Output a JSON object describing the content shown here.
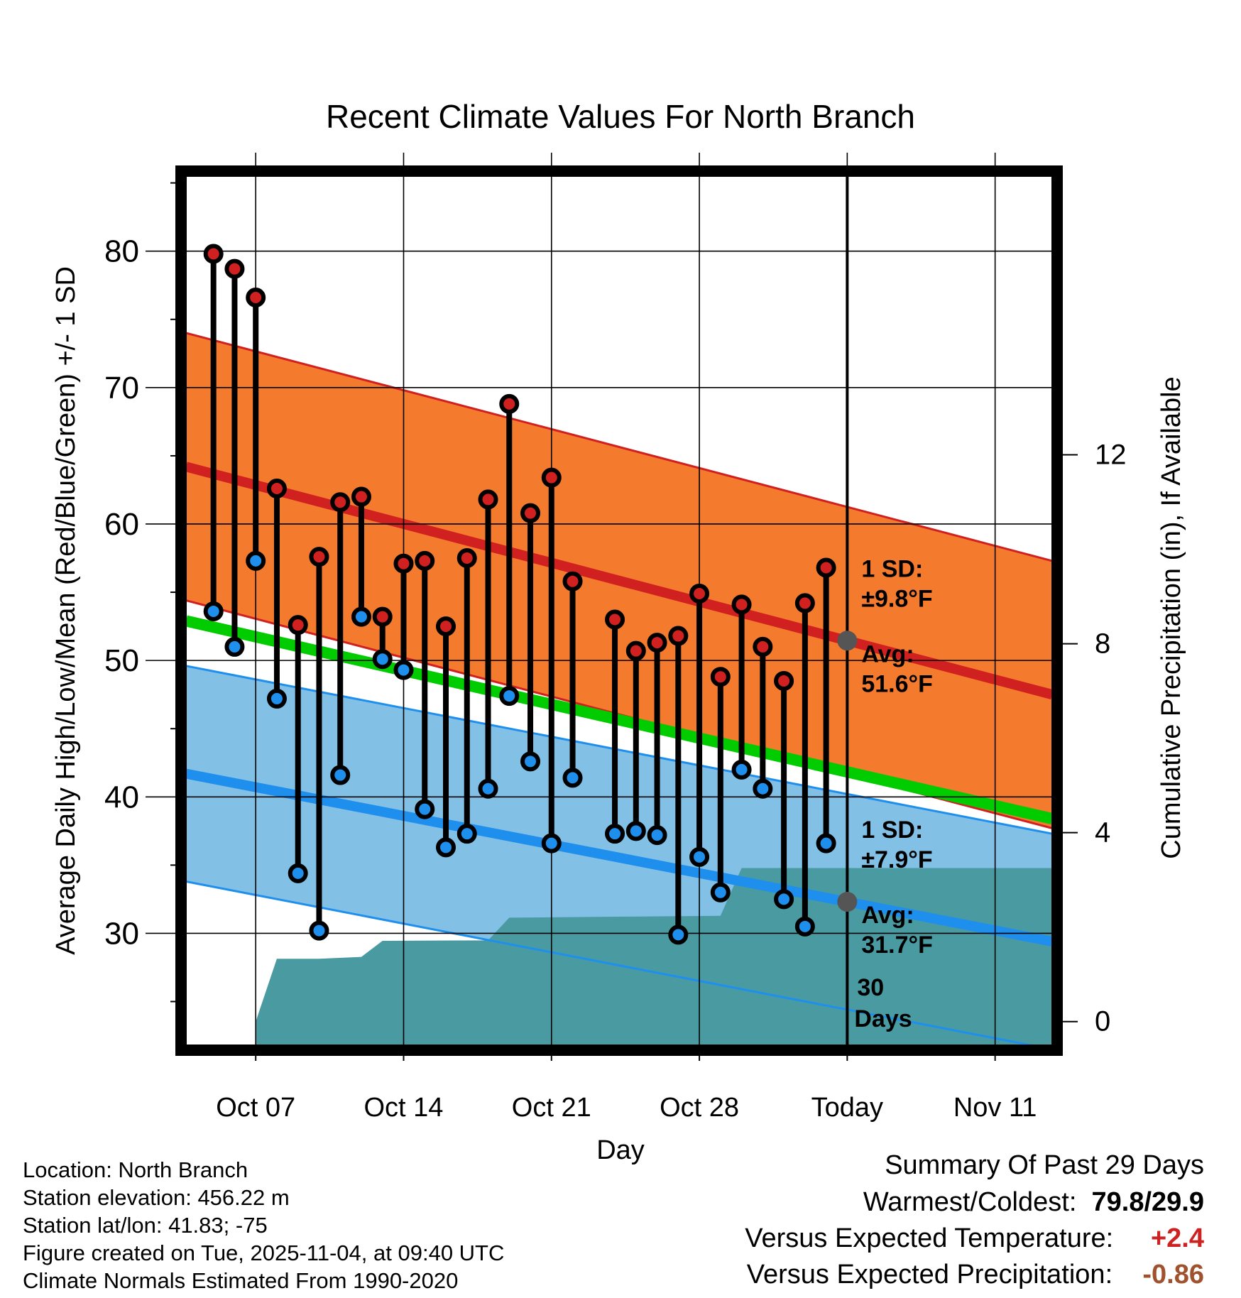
{
  "chart_data": {
    "type": "climate-range",
    "title": "Recent Climate Values For North Branch",
    "xlabel": "Day",
    "ylabel_left": "Average Daily High/Low/Mean (Red/Blue/Green) +/- 1 SD",
    "ylabel_right": "Cumulative Precipitation (in), If Available",
    "x_ticks": [
      {
        "day": 7,
        "label": "Oct 07"
      },
      {
        "day": 14,
        "label": "Oct 14"
      },
      {
        "day": 21,
        "label": "Oct 21"
      },
      {
        "day": 28,
        "label": "Oct 28"
      },
      {
        "day": 35,
        "label": "Today"
      },
      {
        "day": 42,
        "label": "Nov 11"
      }
    ],
    "x_range": [
      3.7,
      44.7
    ],
    "y_range_left": [
      21.8,
      85.5
    ],
    "y_ticks_left": [
      30,
      40,
      50,
      60,
      70,
      80
    ],
    "y_range_right": [
      -0.5,
      17.9
    ],
    "y_ticks_right": [
      0,
      4,
      8,
      12
    ],
    "today_day": 35,
    "normals": {
      "high_avg": {
        "start_day": 3.7,
        "start": 64.2,
        "end_day": 44.7,
        "end": 47.5
      },
      "high_sd": 9.8,
      "low_avg": {
        "start_day": 3.7,
        "start": 41.7,
        "end_day": 44.7,
        "end": 29.4
      },
      "low_sd": 7.9,
      "mean": {
        "start_day": 3.7,
        "start": 52.9,
        "end_day": 44.7,
        "end": 38.4
      }
    },
    "daily": [
      {
        "day": 5,
        "high": 79.8,
        "low": 53.6
      },
      {
        "day": 6,
        "high": 78.7,
        "low": 51.0
      },
      {
        "day": 7,
        "high": 76.6,
        "low": 57.3
      },
      {
        "day": 8,
        "high": 62.6,
        "low": 47.2
      },
      {
        "day": 9,
        "high": 52.6,
        "low": 34.4
      },
      {
        "day": 10,
        "high": 57.6,
        "low": 30.2
      },
      {
        "day": 11,
        "high": 61.6,
        "low": 41.6
      },
      {
        "day": 12,
        "high": 62.0,
        "low": 53.2
      },
      {
        "day": 13,
        "high": 53.2,
        "low": 50.1
      },
      {
        "day": 14,
        "high": 57.1,
        "low": 49.3
      },
      {
        "day": 15,
        "high": 57.3,
        "low": 39.1
      },
      {
        "day": 16,
        "high": 52.5,
        "low": 36.3
      },
      {
        "day": 17,
        "high": 57.5,
        "low": 37.3
      },
      {
        "day": 18,
        "high": 61.8,
        "low": 40.6
      },
      {
        "day": 19,
        "high": 68.8,
        "low": 47.4
      },
      {
        "day": 20,
        "high": 60.8,
        "low": 42.6
      },
      {
        "day": 21,
        "high": 63.4,
        "low": 36.6
      },
      {
        "day": 22,
        "high": 55.8,
        "low": 41.4
      },
      {
        "day": 24,
        "high": 53.0,
        "low": 37.3
      },
      {
        "day": 25,
        "high": 50.7,
        "low": 37.5
      },
      {
        "day": 26,
        "high": 51.3,
        "low": 37.2
      },
      {
        "day": 27,
        "high": 51.8,
        "low": 29.9
      },
      {
        "day": 28,
        "high": 54.9,
        "low": 35.6
      },
      {
        "day": 29,
        "high": 48.8,
        "low": 33.0
      },
      {
        "day": 30,
        "high": 54.1,
        "low": 42.0
      },
      {
        "day": 31,
        "high": 51.0,
        "low": 40.6
      },
      {
        "day": 32,
        "high": 48.5,
        "low": 32.5
      },
      {
        "day": 33,
        "high": 54.2,
        "low": 30.5
      },
      {
        "day": 34,
        "high": 56.8,
        "low": 36.6
      }
    ],
    "precip_cumulative": [
      {
        "day": 7,
        "value": 0.0
      },
      {
        "day": 8,
        "value": 1.33
      },
      {
        "day": 10,
        "value": 1.33
      },
      {
        "day": 12,
        "value": 1.37
      },
      {
        "day": 13,
        "value": 1.71
      },
      {
        "day": 18,
        "value": 1.72
      },
      {
        "day": 19,
        "value": 2.2
      },
      {
        "day": 24,
        "value": 2.22
      },
      {
        "day": 29,
        "value": 2.24
      },
      {
        "day": 30,
        "value": 3.25
      },
      {
        "day": 44.7,
        "value": 3.25
      }
    ],
    "annotations": {
      "high_sd_label": "1 SD:",
      "high_sd_value": "±9.8°F",
      "high_avg_label": "Avg:",
      "high_avg_value": "51.6°F",
      "low_sd_label": "1 SD:",
      "low_sd_value": "±7.9°F",
      "low_avg_label": "Avg:",
      "low_avg_value": "31.7°F",
      "window_num": "30",
      "window_unit": "Days"
    }
  },
  "info": {
    "location": "Location: North Branch",
    "elevation": "Station elevation: 456.22 m",
    "latlon": "Station lat/lon: 41.83; -75",
    "created": "Figure created on Tue, 2025-11-04, at 09:40 UTC",
    "normals": "Climate Normals Estimated From 1990-2020"
  },
  "summary": {
    "title": "Summary Of Past 29 Days",
    "warm_cold_label": "Warmest/Coldest:",
    "warm_cold_value": "79.8/29.9",
    "temp_label": "Versus Expected Temperature:",
    "temp_value": "+2.4",
    "precip_label": "Versus Expected Precipitation:",
    "precip_value": "-0.86"
  },
  "colors": {
    "high_band": "#f47a2e",
    "high_line": "#d02020",
    "low_band": "#82c0e6",
    "low_line": "#1f8fee",
    "mean_line": "#00cc00",
    "precip": "#4a9aa2",
    "annot": "#555555"
  }
}
